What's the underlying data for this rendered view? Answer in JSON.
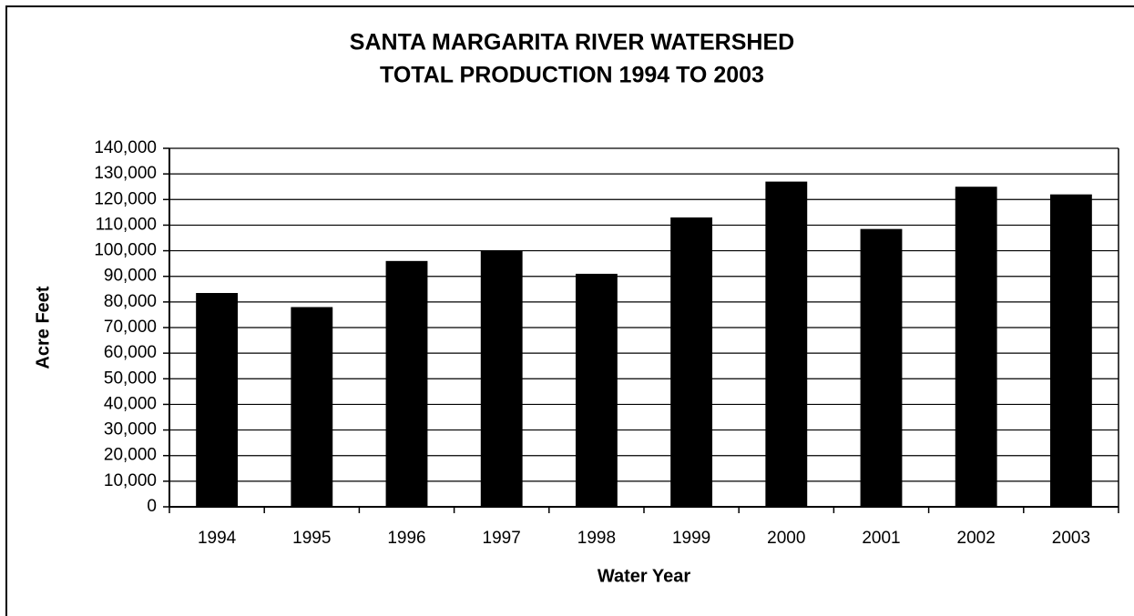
{
  "chart_data": {
    "type": "bar",
    "title": [
      "SANTA MARGARITA RIVER WATERSHED",
      "TOTAL PRODUCTION 1994 TO 2003"
    ],
    "xlabel": "Water Year",
    "ylabel": "Acre Feet",
    "categories": [
      "1994",
      "1995",
      "1996",
      "1997",
      "1998",
      "1999",
      "2000",
      "2001",
      "2002",
      "2003"
    ],
    "values": [
      83500,
      78000,
      96000,
      100000,
      91000,
      113000,
      127000,
      108500,
      125000,
      122000
    ],
    "color": "#000000",
    "ylim": [
      0,
      140000
    ],
    "yticks": [
      0,
      {
        "value": 10000,
        "label": "10,000"
      },
      {
        "value": 20000,
        "label": "20,000"
      },
      {
        "value": 30000,
        "label": "30,000"
      },
      {
        "value": 40000,
        "label": "40,000"
      },
      {
        "value": 50000,
        "label": "50,000"
      },
      {
        "value": 60000,
        "label": "60,000"
      },
      {
        "value": 70000,
        "label": "70,000"
      },
      {
        "value": 80000,
        "label": "80,000"
      },
      {
        "value": 90000,
        "label": "90,000"
      },
      {
        "value": 100000,
        "label": "100,000"
      },
      {
        "value": 110000,
        "label": "110,000"
      },
      {
        "value": 120000,
        "label": "120,000"
      },
      {
        "value": 130000,
        "label": "130,000"
      },
      {
        "value": 140000,
        "label": "140,000"
      }
    ],
    "grid": true
  }
}
